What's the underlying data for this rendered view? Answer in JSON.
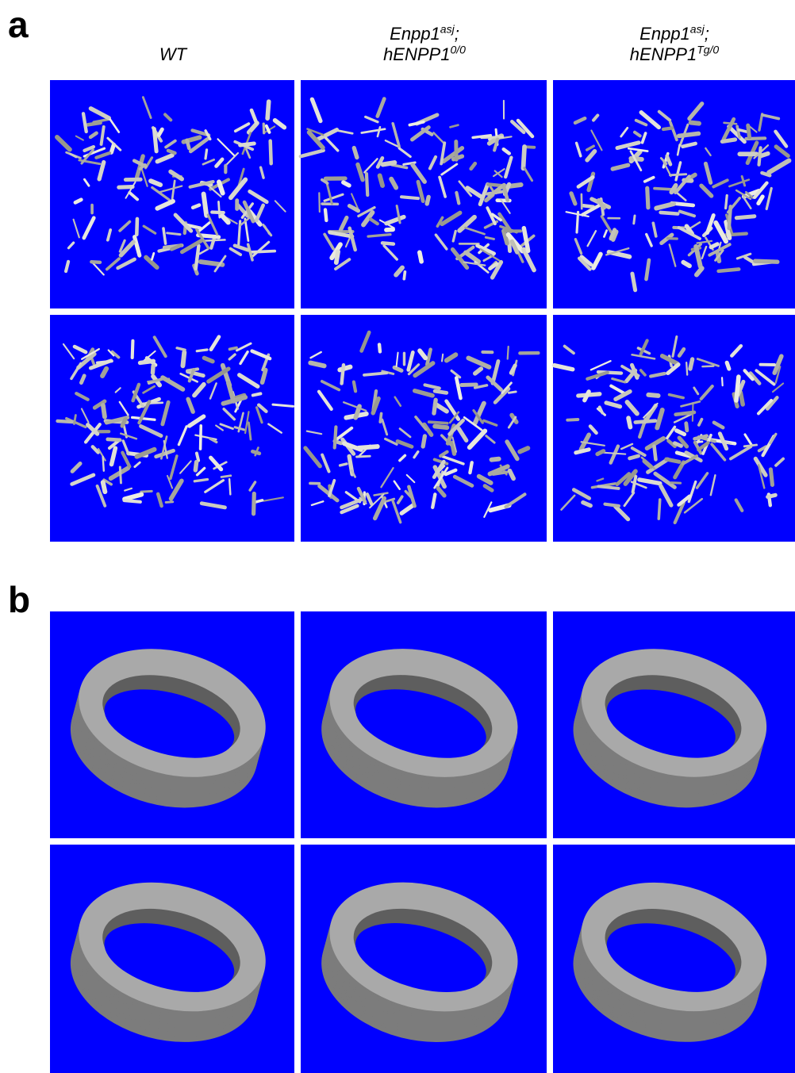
{
  "panel_a": {
    "label": "a",
    "columns": [
      {
        "line1": {
          "text": "WT"
        }
      },
      {
        "line1": {
          "text": "Enpp1",
          "sup": "asj",
          "after": ";"
        },
        "line2": {
          "text": "hENPP1",
          "sup": "0/0"
        }
      },
      {
        "line1": {
          "text": "Enpp1",
          "sup": "asj",
          "after": ";"
        },
        "line2": {
          "text": "hENPP1",
          "sup": "Tg/0"
        }
      }
    ]
  },
  "panel_b": {
    "label": "b"
  }
}
